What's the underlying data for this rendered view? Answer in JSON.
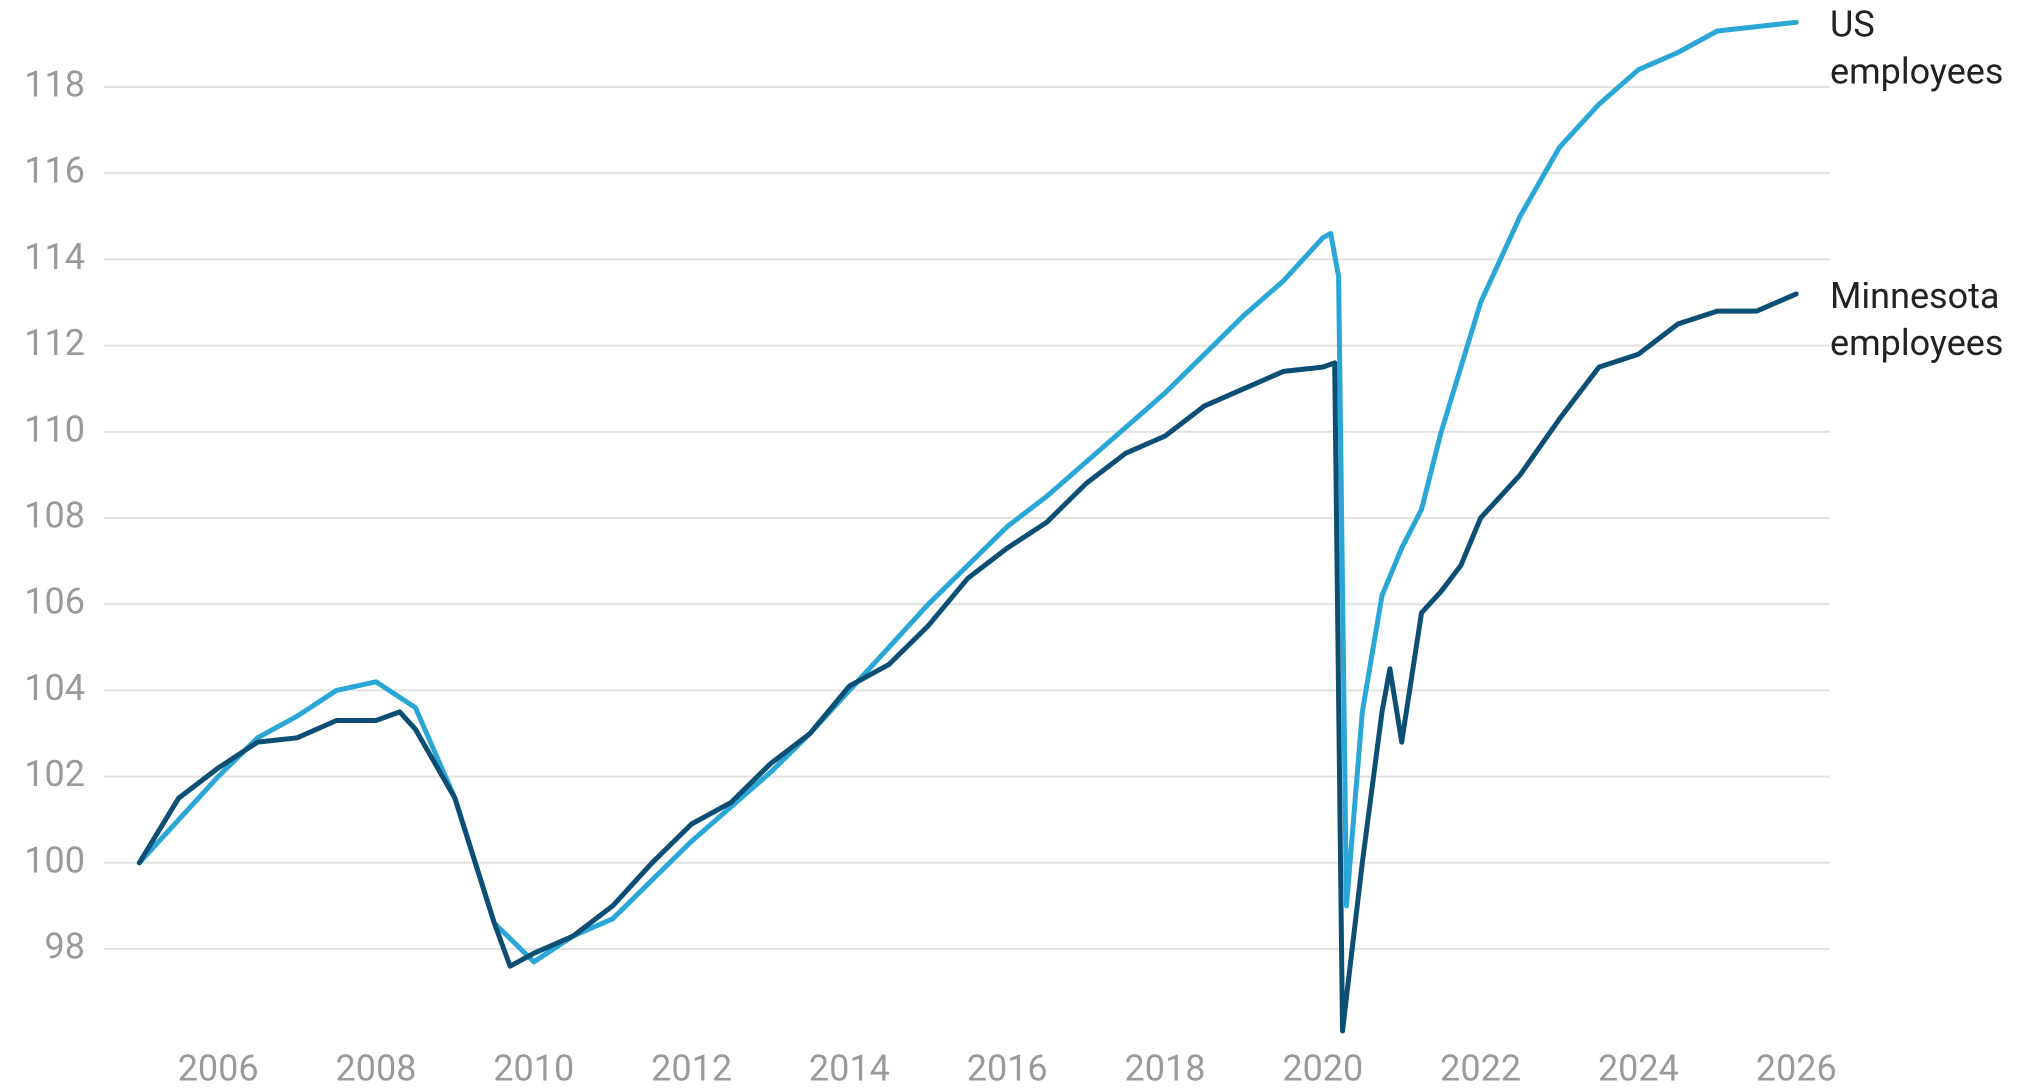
{
  "chart_data": {
    "type": "line",
    "xlim": [
      2004.8,
      2026.4
    ],
    "xticks": [
      2006,
      2008,
      2010,
      2012,
      2014,
      2016,
      2018,
      2020,
      2022,
      2024,
      2026
    ],
    "ylim": [
      95.8,
      119.8
    ],
    "yticks": [
      98,
      100,
      102,
      104,
      106,
      108,
      110,
      112,
      114,
      116,
      118
    ],
    "grid": true,
    "series": [
      {
        "name": "US employees",
        "color": "#2aa7d6",
        "x": [
          2005.0,
          2005.5,
          2006.0,
          2006.5,
          2007.0,
          2007.5,
          2008.0,
          2008.5,
          2009.0,
          2009.5,
          2010.0,
          2010.5,
          2011.0,
          2011.5,
          2012.0,
          2012.5,
          2013.0,
          2013.5,
          2014.0,
          2014.5,
          2015.0,
          2015.5,
          2016.0,
          2016.5,
          2017.0,
          2017.5,
          2018.0,
          2018.5,
          2019.0,
          2019.5,
          2020.0,
          2020.1,
          2020.2,
          2020.3,
          2020.5,
          2020.75,
          2021.0,
          2021.25,
          2021.5,
          2021.75,
          2022.0,
          2022.5,
          2023.0,
          2023.5,
          2024.0,
          2024.5,
          2025.0,
          2025.5,
          2026.0
        ],
        "values": [
          100,
          101.0,
          102.0,
          102.9,
          103.4,
          104.0,
          104.2,
          103.6,
          101.5,
          98.6,
          97.7,
          98.3,
          98.7,
          99.6,
          100.5,
          101.3,
          102.1,
          103.0,
          104.0,
          105.0,
          106.0,
          106.9,
          107.8,
          108.5,
          109.3,
          110.1,
          110.9,
          111.8,
          112.7,
          113.5,
          114.5,
          114.6,
          113.6,
          99.0,
          103.5,
          106.2,
          107.3,
          108.2,
          110.0,
          111.5,
          113.0,
          115.0,
          116.6,
          117.6,
          118.4,
          118.8,
          119.3,
          119.4,
          119.5
        ]
      },
      {
        "name": "Minnesota employees",
        "color": "#0d4f74",
        "x": [
          2005.0,
          2005.5,
          2006.0,
          2006.5,
          2007.0,
          2007.5,
          2008.0,
          2008.3,
          2008.5,
          2009.0,
          2009.5,
          2009.7,
          2010.0,
          2010.5,
          2011.0,
          2011.5,
          2012.0,
          2012.5,
          2013.0,
          2013.5,
          2014.0,
          2014.5,
          2015.0,
          2015.5,
          2016.0,
          2016.5,
          2017.0,
          2017.5,
          2018.0,
          2018.5,
          2019.0,
          2019.5,
          2020.0,
          2020.15,
          2020.25,
          2020.5,
          2020.75,
          2020.85,
          2021.0,
          2021.25,
          2021.5,
          2021.75,
          2022.0,
          2022.5,
          2023.0,
          2023.5,
          2024.0,
          2024.5,
          2025.0,
          2025.5,
          2026.0
        ],
        "values": [
          100,
          101.5,
          102.2,
          102.8,
          102.9,
          103.3,
          103.3,
          103.5,
          103.1,
          101.5,
          98.6,
          97.6,
          97.9,
          98.3,
          99.0,
          100.0,
          100.9,
          101.4,
          102.3,
          103.0,
          104.1,
          104.6,
          105.5,
          106.6,
          107.3,
          107.9,
          108.8,
          109.5,
          109.9,
          110.6,
          111.0,
          111.4,
          111.5,
          111.6,
          96.1,
          100.0,
          103.5,
          104.5,
          102.8,
          105.8,
          106.3,
          106.9,
          108.0,
          109.0,
          110.3,
          111.5,
          111.8,
          112.5,
          112.8,
          112.8,
          113.2
        ]
      }
    ]
  }
}
